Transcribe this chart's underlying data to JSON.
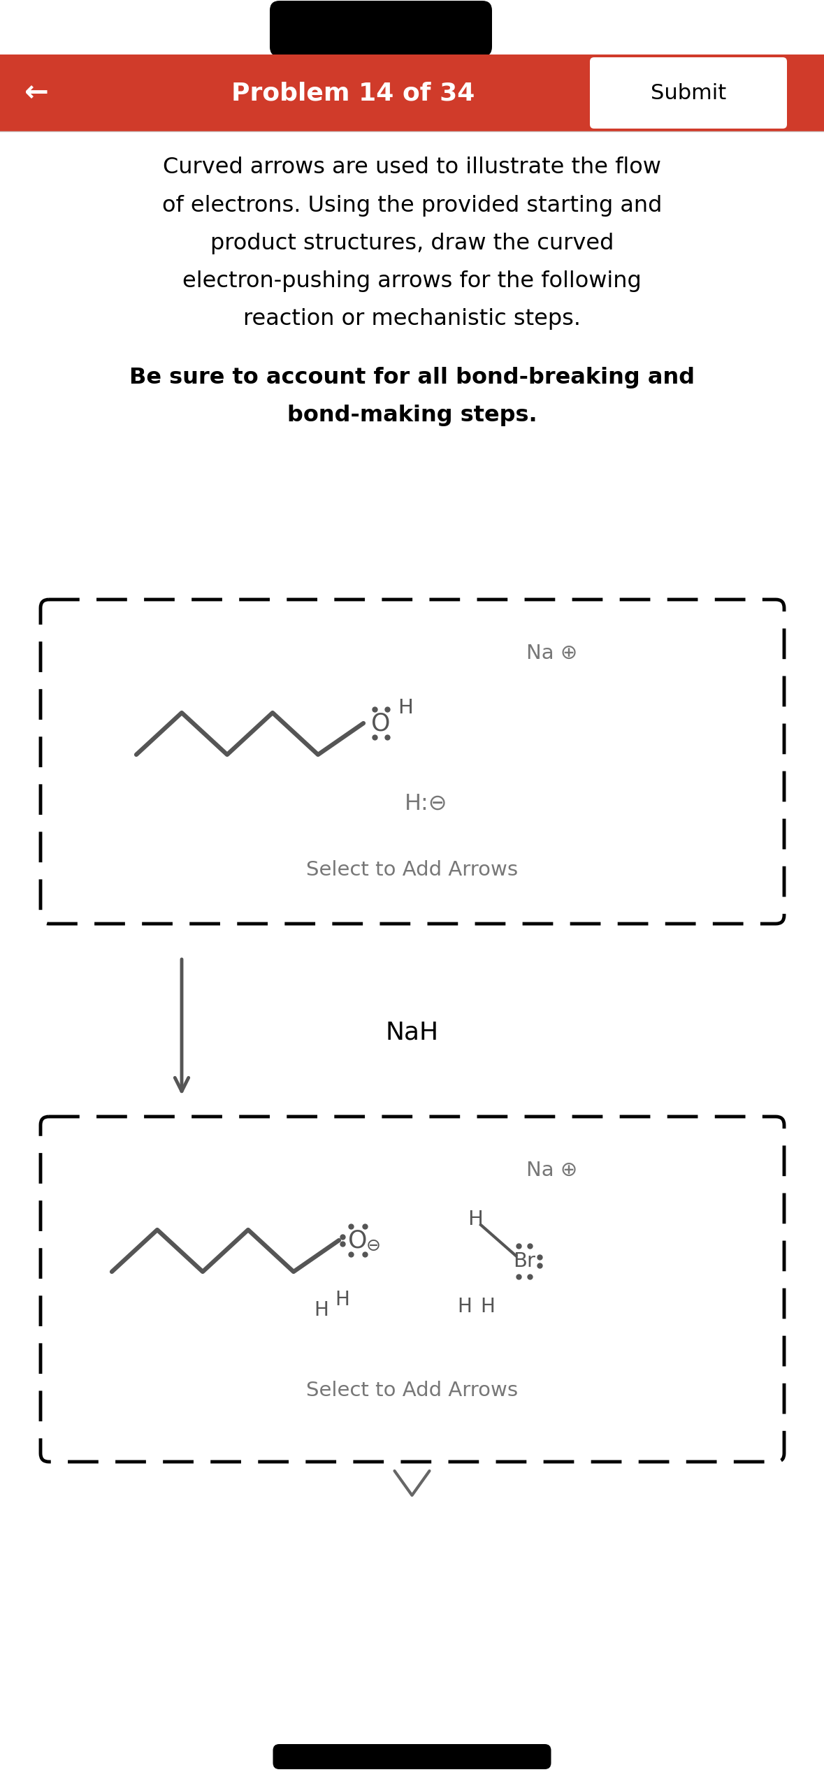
{
  "title": "Problem 14 of 34",
  "submit_text": "Submit",
  "back_arrow": "←",
  "header_color": "#D03B2A",
  "header_text_color": "#FFFFFF",
  "bg_color": "#FFFFFF",
  "instruction_text1": "Curved arrows are used to illustrate the flow",
  "instruction_text2": "of electrons. Using the provided starting and",
  "instruction_text3": "product structures, draw the curved",
  "instruction_text4": "electron-pushing arrows for the following",
  "instruction_text5": "reaction or mechanistic steps.",
  "instruction2_text1": "Be sure to account for all bond-breaking and",
  "instruction2_text2": "bond-making steps.",
  "select_arrows_text": "Select to Add Arrows",
  "reagent_text": "NaH",
  "box1_na_label": "Na ⊕",
  "box1_hmin_label": "H:⊖",
  "box2_na_label": "Na ⊕",
  "dashed_border_color": "#000000",
  "molecule_color": "#555555",
  "label_color": "#777777"
}
